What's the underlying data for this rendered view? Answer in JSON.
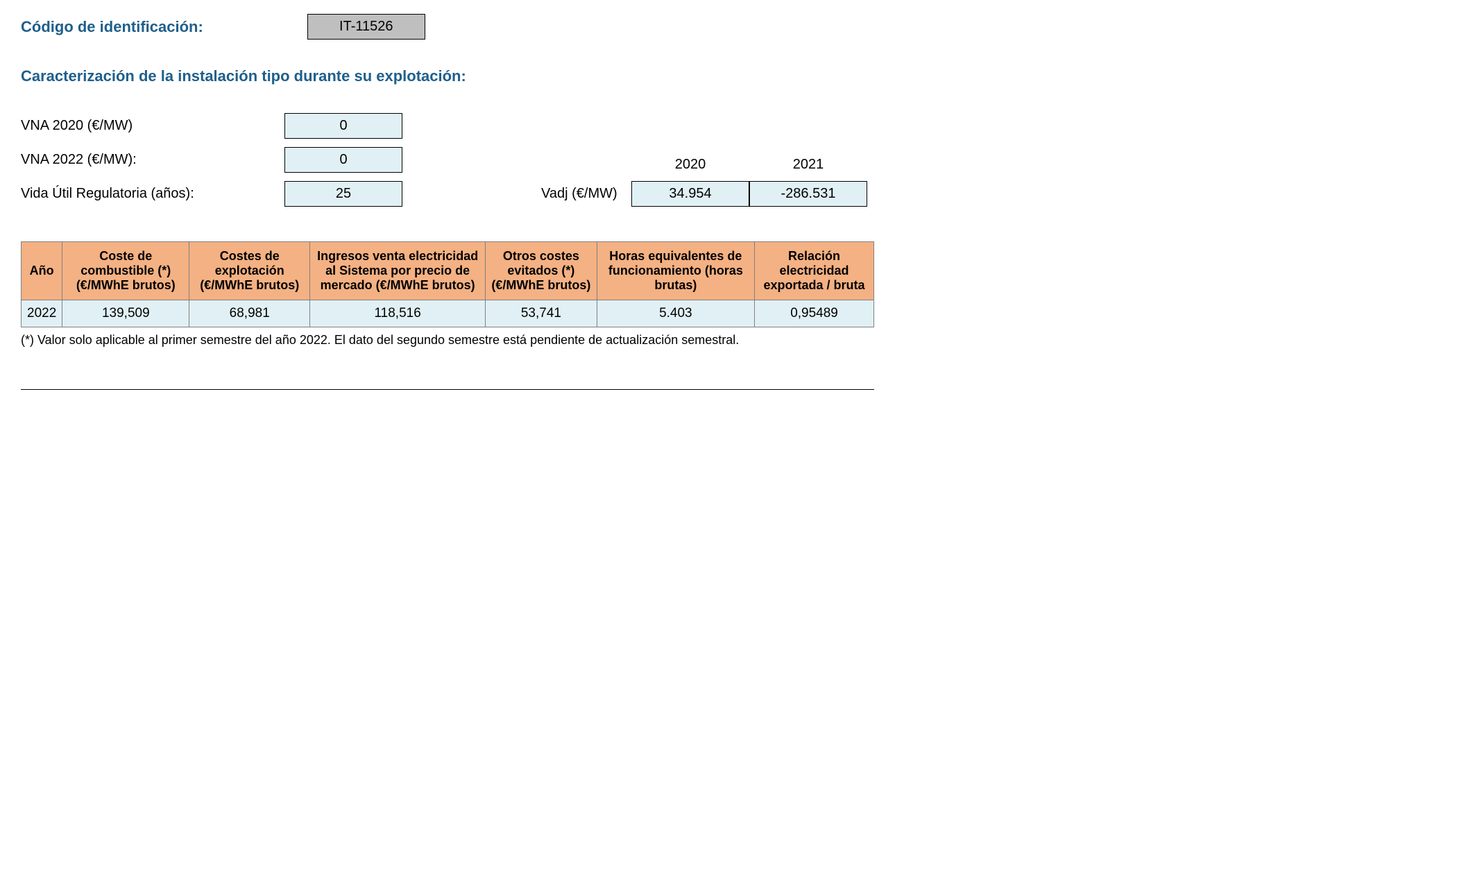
{
  "header": {
    "label": "Código de identificación:",
    "code": "IT-11526"
  },
  "section_title": "Caracterización de la instalación tipo durante su explotación:",
  "params": {
    "vna_2020_label": "VNA 2020 (€/MW)",
    "vna_2020_value": "0",
    "vna_2022_label": "VNA 2022 (€/MW):",
    "vna_2022_value": "0",
    "vida_util_label": "Vida Útil Regulatoria (años):",
    "vida_util_value": "25"
  },
  "vadj": {
    "year_2020": "2020",
    "year_2021": "2021",
    "label": "Vadj (€/MW)",
    "value_2020": "34.954",
    "value_2021": "-286.531"
  },
  "table": {
    "headers": {
      "col1": "Año",
      "col2": "Coste de combustible (*) (€/MWhE brutos)",
      "col3": "Costes de explotación (€/MWhE brutos)",
      "col4": "Ingresos venta electricidad al Sistema por precio de mercado (€/MWhE brutos)",
      "col5": "Otros costes evitados (*) (€/MWhE brutos)",
      "col6": "Horas equivalentes de funcionamiento (horas brutas)",
      "col7": "Relación electricidad exportada / bruta"
    },
    "row": {
      "year": "2022",
      "fuel_cost": "139,509",
      "exploit_cost": "68,981",
      "income": "118,516",
      "other_costs": "53,741",
      "hours": "5.403",
      "ratio": "0,95489"
    }
  },
  "footnote": "(*) Valor solo aplicable al primer semestre del año 2022. El dato del segundo semestre está pendiente de actualización semestral."
}
